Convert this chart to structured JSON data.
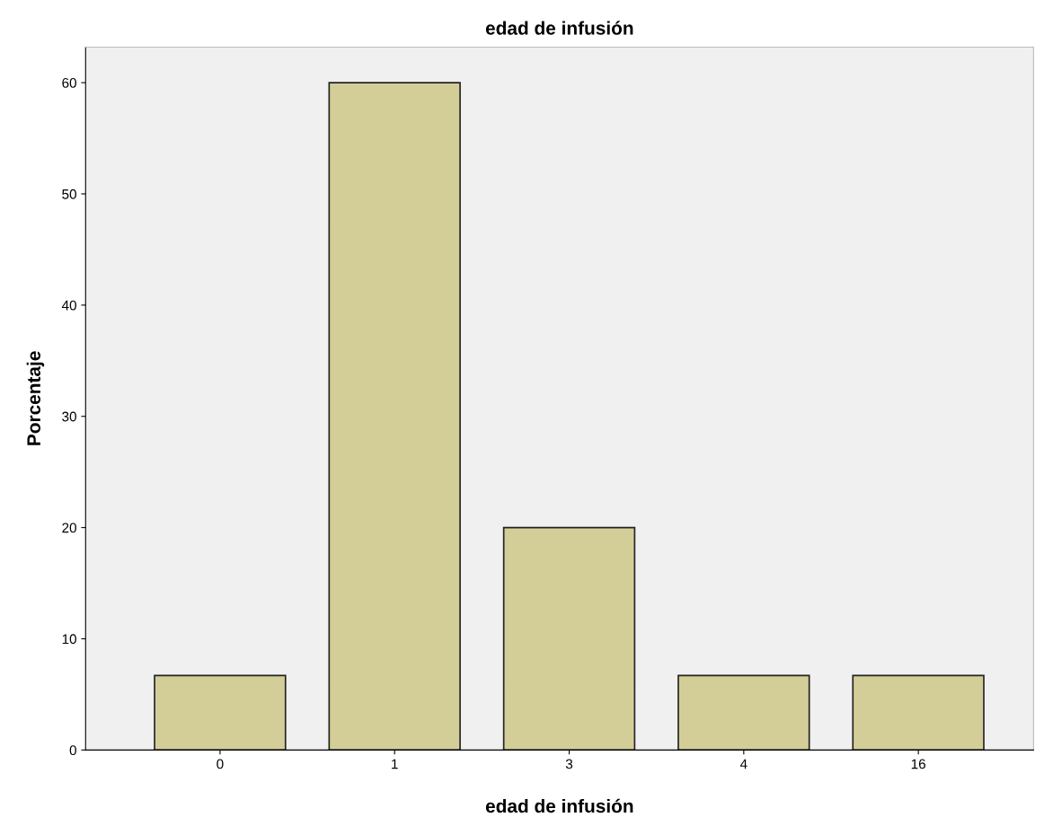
{
  "chart_data": {
    "type": "bar",
    "title": "edad de infusión",
    "xlabel": "edad de infusión",
    "ylabel": "Porcentaje",
    "categories": [
      "0",
      "1",
      "3",
      "4",
      "16"
    ],
    "values": [
      6.7,
      60,
      20,
      6.7,
      6.7
    ],
    "color": "#d3ce97",
    "ylim": [
      0,
      63.2
    ],
    "yticks": [
      0,
      10,
      20,
      30,
      40,
      50,
      60
    ],
    "grid": false,
    "legend": false
  }
}
